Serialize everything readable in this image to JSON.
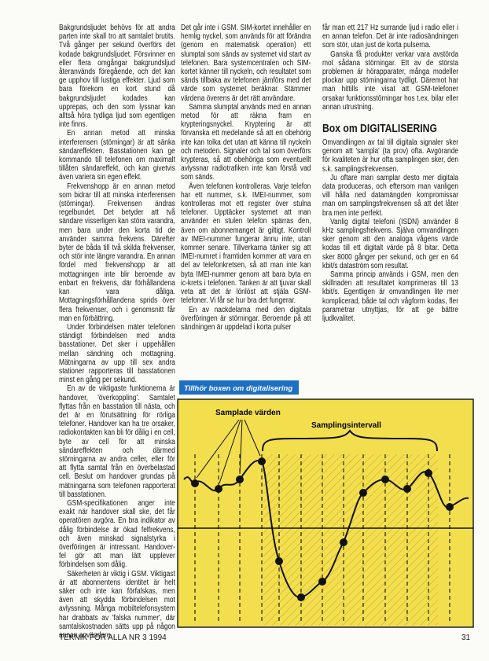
{
  "column_1": [
    "Bakgrundsljudet behövs för att andra parten inte skall tro att samtalet brutits. Två gånger per sekund överförs det kodade bakgrundsljudet. Försvinner en eller flera omgångar bakgrundsljud återanvänds föregående, och det kan ge upphov till lustiga effekter. Ljud som bara förekom en kort stund då bakgrundsljudet kodades kan upprepas, och den som lyssnar kan alltså höra tydliga ljud som egentligen inte finns.",
    "En annan metod att minska interferensen (störningar) är att sänka sändareffekten. Basstationen kan ge kommando till telefonen om maximalt tillåten sändareffekt, och kan givetvis även variera sin egen effekt.",
    "Frekvenshopp är en annan metod som bidrar till att minska interferensen (störningar). Frekvensen ändras regelbundet. Det betyder att två sändare visserligen kan störa varandra, men bara under den korta tid de använder samma frekvens. Därefter byter de båda till två skilda frekvenser, och stör inte längre varandra. En annan fördel med frekvenshopp är att mottagningen inte blir beroende av enbart en frekvens, där förhållandena kan vara dåliga. Mottagningsförhållandena sprids över flera frekvenser, och i genomsnitt får man en förbättring.",
    "Under förbindelsen mäter telefonen ständigt förbindelsen med andra basstationer. Det sker i uppehållen mellan sändning och mottagning. Mätningarna av upp till sex andra stationer rapporteras till basstationen minst en gång per sekund.",
    "En av de viktigaste funktionerna är handover, 'överkoppling'. Samtalet flyttas från en basstation till nästa, och det är en förutsättning för rörliga telefoner. Handover kan ha tre orsaker, radiokontakten kan bli för dålig i en cell, byte av cell för att minska sändareffekten och därmed störningarna av andra celler, eller för att flytta samtal från en överbelastad cell. Beslut om handover grundas på mätningarna som telefonen rapporterat till basstationen.",
    "GSM-specifikationen anger inte exakt när handover skall ske, det får operatören avgöra. En bra indikator av dålig förbindelse är ökad felfrekvens, och även minskad signalstyrka i överföringen är intressant. Handover-fel gör att man lätt upplever förbindelsen som dålig.",
    "Säkerheten är viktig i GSM. Viktigast är att abonnentens identitet är helt säker och inte kan förfalskas, men även att skydda förbindelsen mot avlyssning. Många mobiltelefonsystem har drabbats av 'falska nummer', där samtalskostnaden sätts upp på någon annan användare."
  ],
  "column_2": [
    "Det går inte i GSM. SIM-kortet innehåller en hemlig nyckel, som används för att förändra (genom en matematisk operation) ett slumptal som sänds av systemet vid start av telefonen. Bara systemcentralen och SIM-kortet känner till nyckeln, och resultatet som sänds tillbaka av telefonen jämförs med det värde som systemet beräknar. Stämmer värdena överens är det rätt användare.",
    "Samma slumptal används med en annan metod för att räkna fram en krypteringsnyckel. Kryptering är att förvanska ett medelande så att en obehörig inte kan tolka det utan att känna till nyckeln och metoden. Signaler och tal som överförs krypteras, så att obehöriga som eventuellt avlyssnar radiotrafiken inte kan förstå vad som sänds.",
    "Även telefonen kontrolleras. Varje telefon har ett nummer, s.k. IMEI-nummer, som kontrolleras mot ett register över stulna telefoner. Upptäcker systemet att man använder en stulen telefon spärras den, även om abonnemanget är giltigt. Kontroll av IMEI-nummer fungerar ännu inte, utan kommer senare. Tillverkarna tänker sig att IMEI-numret i framtiden kommer att vara en del av telefonkretsen, så att man inte kan byta IMEI-nummer genom att bara byta en ic-krets i telefonen. Tanken är att tjuvar skall veta att det är lönlöst att stjäla GSM-telefoner. Vi får se hur bra det fungerar.",
    "En av nackdelarna med den digitala överföringen är störningar. Beroende på att sändningen är uppdelad i korta pulser"
  ],
  "column_3": [
    "får man ett 217 Hz surrande ljud i radio eller i en annan telefon. Det är inte radiosändningen som stör, utan just de korta pulserna.",
    "Ganska få produkter verkar vara avstörda mot sådana störningar. Ett av de största problemen är hörapparater, många modeller plockar upp störningarna tydligt. Däremot har man hittills inte visat att GSM-telefoner orsakar funktionsstörningar hos t.ex. bilar eller annan utrustning."
  ],
  "box": {
    "heading": "Box om DIGITALISERING",
    "paragraphs": [
      "Omvandlingen av tal till digitala signaler sker genom att 'sampla' (ta prov) ofta. Avgörande för kvaliteten är hur ofta samplingen sker, den s.k. samplingsfrekvensen.",
      "Ju oftare man samplar desto mer digitala data produceras, och eftersom man vanligen vill hålla ned datamängden kompromissar man om samplingsfrekvensen så att det låter bra men inte perfekt.",
      "Vanlig digital telefoni (ISDN) använder 8 kHz samplingsfrekvens. Själva omvandlingen sker genom att den analoga vågens värde kodas till ett digitalt värde på 8 bitar. Detta sker 8000 gånger per sekund, och ger en 64 kbit/s dataström som resultat.",
      "Samma princip används i GSM, men den skillnaden att resultatet komprimeras till 13 kbit/s. Egentligen är omvandlingen lite mer komplicerad, både tal och vågform kodas, fler parametrar utnyttjas, för att ge bättre ljudkvalitet."
    ]
  },
  "figure": {
    "caption": "Tillhör boxen om digitalisering",
    "label_samples": "Samplade värden",
    "label_interval": "Samplingsintervall"
  },
  "footer": {
    "magazine": "TEKNIK FÖR ALLA NR 3 1994",
    "page": "31"
  }
}
